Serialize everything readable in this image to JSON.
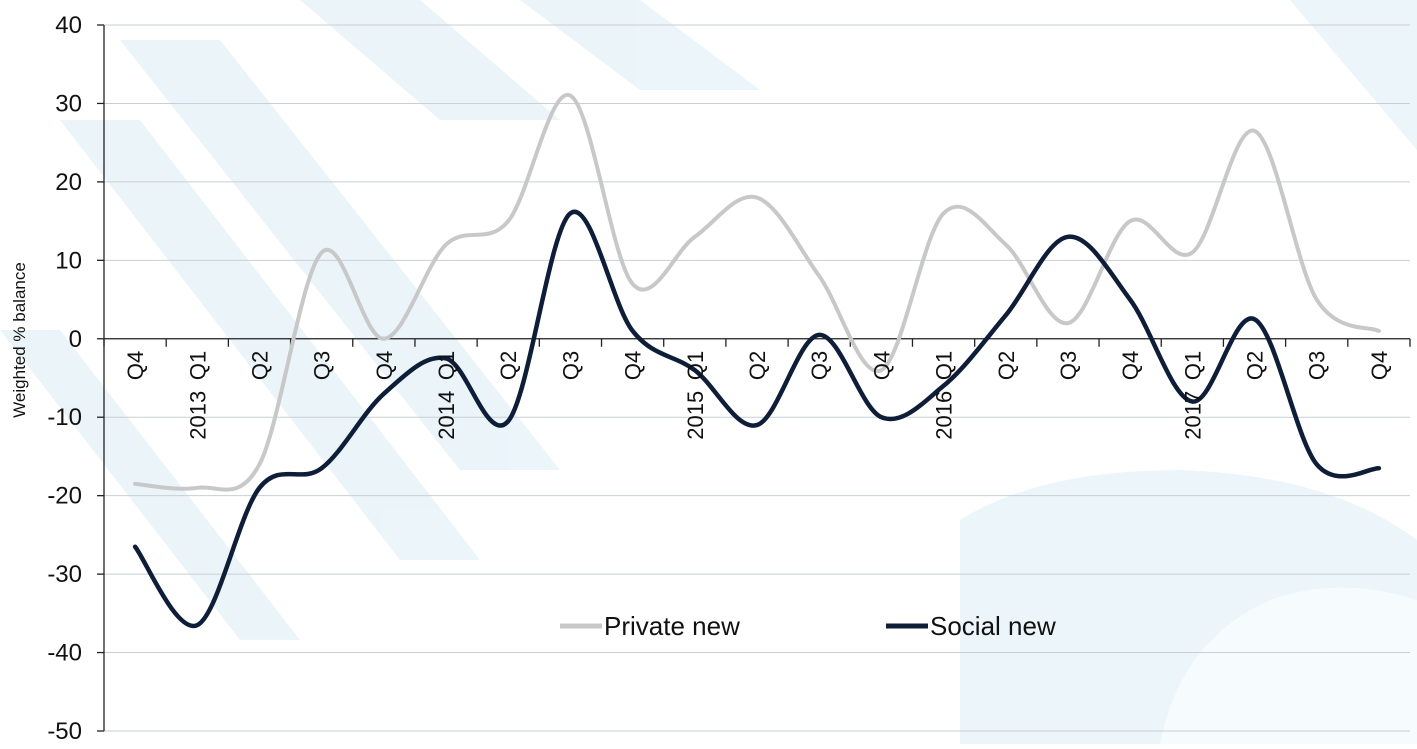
{
  "chart_data": {
    "type": "line",
    "title": "",
    "xlabel": "",
    "ylabel": "Weighted % balance",
    "ylim": [
      -50,
      40
    ],
    "yticks": [
      40,
      30,
      20,
      10,
      0,
      -10,
      -20,
      -30,
      -40,
      -50
    ],
    "grid": true,
    "legend_position": "bottom-center",
    "categories": [
      "Q4",
      "Q1",
      "Q2",
      "Q3",
      "Q4",
      "Q1",
      "Q2",
      "Q3",
      "Q4",
      "Q1",
      "Q2",
      "Q3",
      "Q4",
      "Q1",
      "Q2",
      "Q3",
      "Q4",
      "Q1",
      "Q2",
      "Q3",
      "Q4"
    ],
    "year_labels": [
      {
        "index": 1,
        "text": "2013"
      },
      {
        "index": 5,
        "text": "2014"
      },
      {
        "index": 9,
        "text": "2015"
      },
      {
        "index": 13,
        "text": "2016"
      },
      {
        "index": 17,
        "text": "2017"
      }
    ],
    "series": [
      {
        "name": "Private new",
        "color": "#c8c8c8",
        "values": [
          -18.5,
          -19,
          -16,
          11,
          0,
          12,
          15,
          31,
          7,
          13,
          18,
          8,
          -4,
          16,
          12,
          2,
          15,
          11,
          26.5,
          5,
          1
        ]
      },
      {
        "name": "Social new",
        "color": "#0f1e38",
        "values": [
          -26.5,
          -36.5,
          -19,
          -16.5,
          -7,
          -2.5,
          -10.5,
          16,
          1,
          -4,
          -11,
          0.5,
          -10,
          -6,
          3,
          13,
          5,
          -8,
          2.5,
          -16,
          -16.5
        ]
      }
    ]
  }
}
